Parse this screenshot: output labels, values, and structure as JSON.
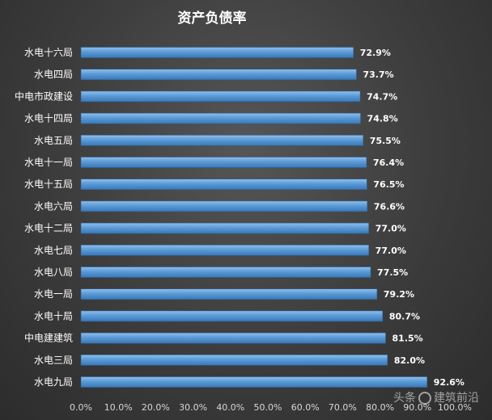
{
  "chart_data": {
    "type": "bar",
    "orientation": "horizontal",
    "title": "资产负债率",
    "categories": [
      "水电十六局",
      "水电四局",
      "中电市政建设",
      "水电十四局",
      "水电五局",
      "水电十一局",
      "水电十五局",
      "水电六局",
      "水电十二局",
      "水电七局",
      "水电八局",
      "水电一局",
      "水电十局",
      "中电建建筑",
      "水电三局",
      "水电九局"
    ],
    "values": [
      72.9,
      73.7,
      74.7,
      74.8,
      75.5,
      76.4,
      76.5,
      76.6,
      77.0,
      77.0,
      77.5,
      79.2,
      80.7,
      81.5,
      82.0,
      92.6
    ],
    "value_labels": [
      "72.9%",
      "73.7%",
      "74.7%",
      "74.8%",
      "75.5%",
      "76.4%",
      "76.5%",
      "76.6%",
      "77.0%",
      "77.0%",
      "77.5%",
      "79.2%",
      "80.7%",
      "81.5%",
      "82.0%",
      "92.6%"
    ],
    "xlim": [
      0,
      100
    ],
    "xticks": [
      0,
      10,
      20,
      30,
      40,
      50,
      60,
      70,
      80,
      90,
      100
    ],
    "xtick_labels": [
      "0.0%",
      "10.0%",
      "20.0%",
      "30.0%",
      "40.0%",
      "50.0%",
      "60.0%",
      "70.0%",
      "80.0%",
      "90.0%",
      "100.0%"
    ],
    "grid": false,
    "legend": "none",
    "bar_color": "#5b9bd5"
  },
  "watermark": {
    "left_text": "头条",
    "right_text": "建筑前沿",
    "icon": "watermark-logo-icon"
  }
}
